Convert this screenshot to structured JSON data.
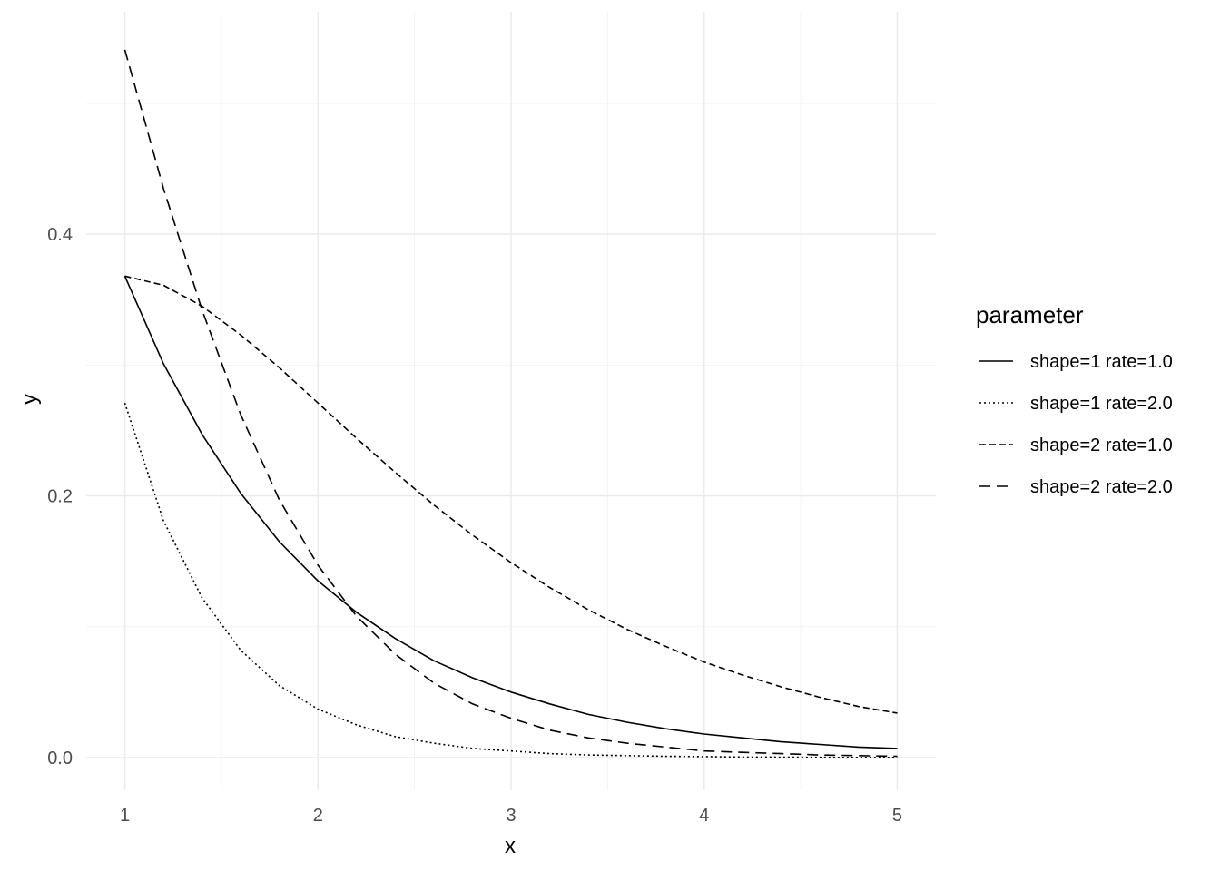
{
  "chart_data": {
    "type": "line",
    "xlabel": "x",
    "ylabel": "y",
    "xlim": [
      0.8,
      5.2
    ],
    "ylim": [
      -0.025,
      0.57
    ],
    "x_ticks": [
      1,
      2,
      3,
      4,
      5
    ],
    "x_tick_labels": [
      "1",
      "2",
      "3",
      "4",
      "5"
    ],
    "x_minor_ticks": [
      1.5,
      2.5,
      3.5,
      4.5
    ],
    "y_ticks": [
      0.0,
      0.2,
      0.4
    ],
    "y_tick_labels": [
      "0.0",
      "0.2",
      "0.4"
    ],
    "y_minor_ticks": [
      0.1,
      0.3,
      0.5
    ],
    "grid": true,
    "legend": {
      "title": "parameter",
      "position": "right"
    },
    "x": [
      1.0,
      1.2,
      1.4,
      1.6,
      1.8,
      2.0,
      2.2,
      2.4,
      2.6,
      2.8,
      3.0,
      3.2,
      3.4,
      3.6,
      3.8,
      4.0,
      4.2,
      4.4,
      4.6,
      4.8,
      5.0
    ],
    "series": [
      {
        "name": "shape=1 rate=1.0",
        "dash": "solid",
        "values": [
          0.368,
          0.301,
          0.247,
          0.202,
          0.165,
          0.135,
          0.111,
          0.091,
          0.074,
          0.061,
          0.05,
          0.041,
          0.033,
          0.027,
          0.022,
          0.018,
          0.015,
          0.012,
          0.01,
          0.008,
          0.007
        ]
      },
      {
        "name": "shape=1 rate=2.0",
        "dash": "dotted",
        "values": [
          0.271,
          0.181,
          0.122,
          0.082,
          0.055,
          0.037,
          0.025,
          0.016,
          0.011,
          0.007,
          0.005,
          0.003,
          0.002,
          0.0015,
          0.001,
          0.0007,
          0.0004,
          0.0003,
          0.0002,
          0.0001,
          0.0001
        ]
      },
      {
        "name": "shape=2 rate=1.0",
        "dash": "dashed",
        "values": [
          0.368,
          0.361,
          0.345,
          0.323,
          0.298,
          0.271,
          0.244,
          0.218,
          0.193,
          0.17,
          0.149,
          0.13,
          0.113,
          0.098,
          0.085,
          0.073,
          0.063,
          0.054,
          0.046,
          0.039,
          0.034
        ]
      },
      {
        "name": "shape=2 rate=2.0",
        "dash": "longdash",
        "values": [
          0.541,
          0.435,
          0.342,
          0.262,
          0.197,
          0.147,
          0.108,
          0.079,
          0.057,
          0.041,
          0.03,
          0.021,
          0.015,
          0.011,
          0.008,
          0.005,
          0.004,
          0.003,
          0.002,
          0.0015,
          0.001
        ]
      }
    ]
  }
}
